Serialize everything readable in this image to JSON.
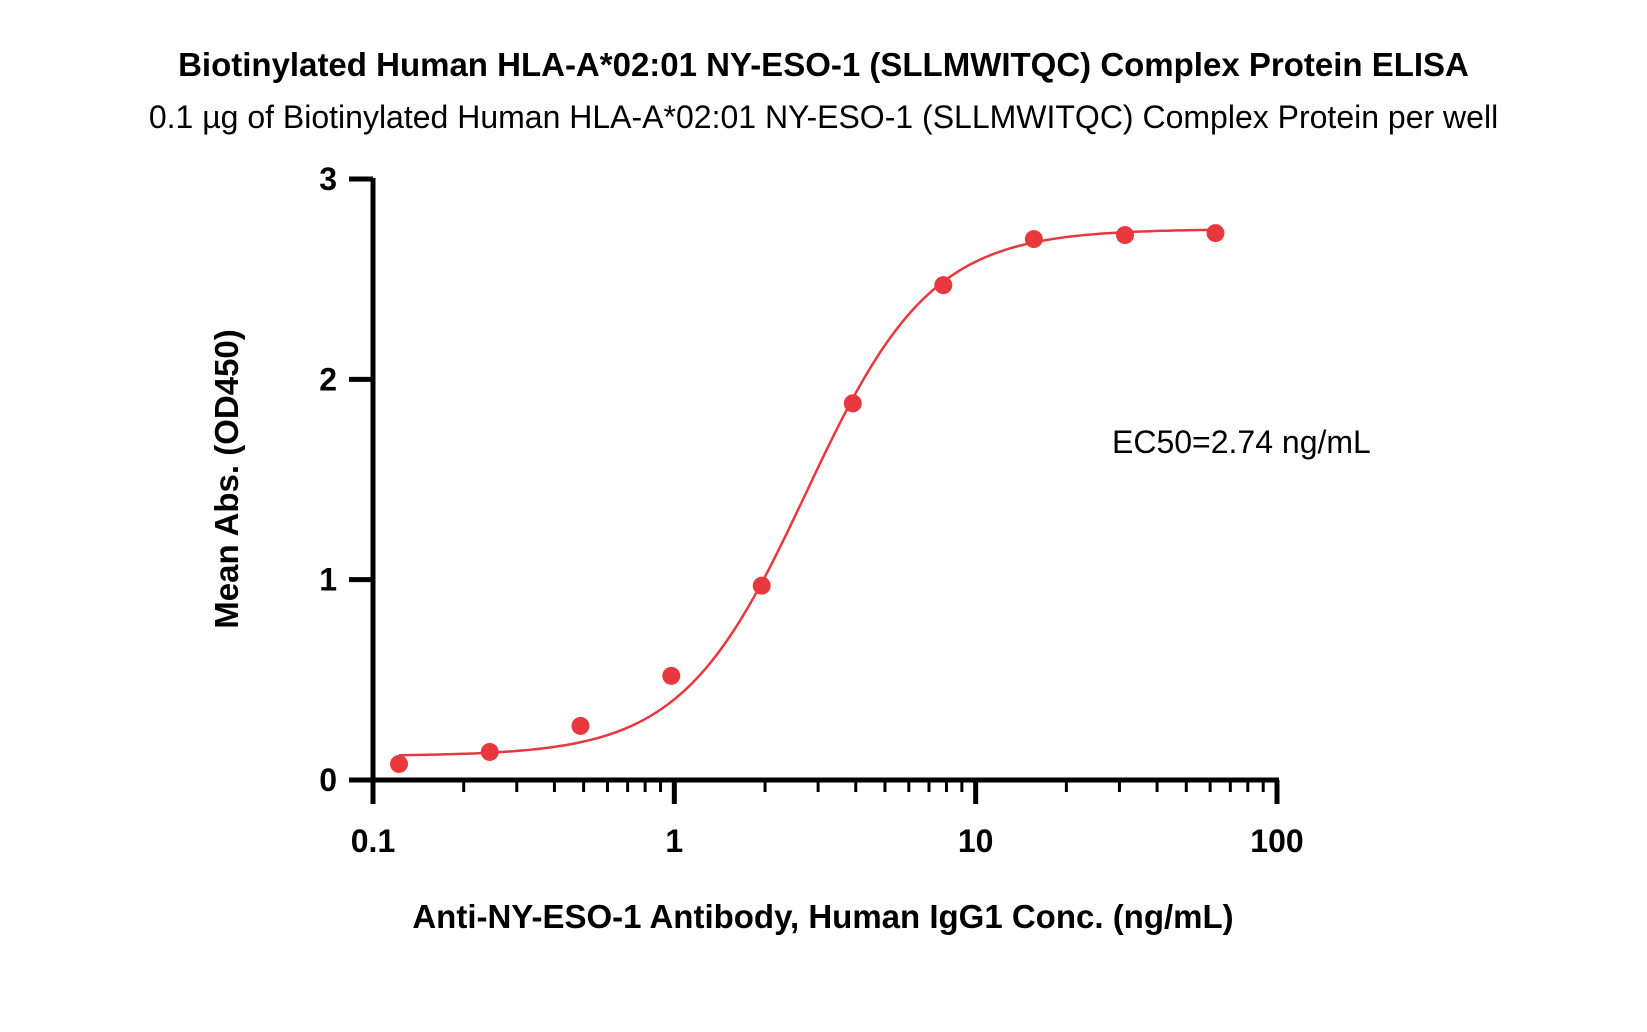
{
  "chart_data": {
    "type": "scatter",
    "title": "Biotinylated Human HLA-A*02:01 NY-ESO-1 (SLLMWITQC) Complex Protein ELISA",
    "subtitle": "0.1 µg of Biotinylated Human HLA-A*02:01 NY-ESO-1 (SLLMWITQC) Complex Protein per well",
    "xlabel": "Anti-NY-ESO-1 Antibody, Human IgG1 Conc. (ng/mL)",
    "ylabel": "Mean Abs. (OD450)",
    "xscale": "log",
    "xlim": [
      0.1,
      100
    ],
    "ylim": [
      0,
      3
    ],
    "xticks": [
      "0.1",
      "1",
      "10",
      "100"
    ],
    "yticks": [
      "0",
      "1",
      "2",
      "3"
    ],
    "annotation": "EC50=2.74 ng/mL",
    "color": "#e8383d",
    "series": [
      {
        "x": [
          0.122,
          0.244,
          0.488,
          0.977,
          1.95,
          3.91,
          7.81,
          15.6,
          31.3,
          62.5
        ],
        "y": [
          0.08,
          0.14,
          0.27,
          0.52,
          0.97,
          1.88,
          2.47,
          2.7,
          2.72,
          2.73
        ]
      }
    ],
    "fit": {
      "bottom": 0.12,
      "top": 2.75,
      "ec50": 2.74,
      "hill": 2.1
    },
    "grid": false,
    "legend": false
  }
}
